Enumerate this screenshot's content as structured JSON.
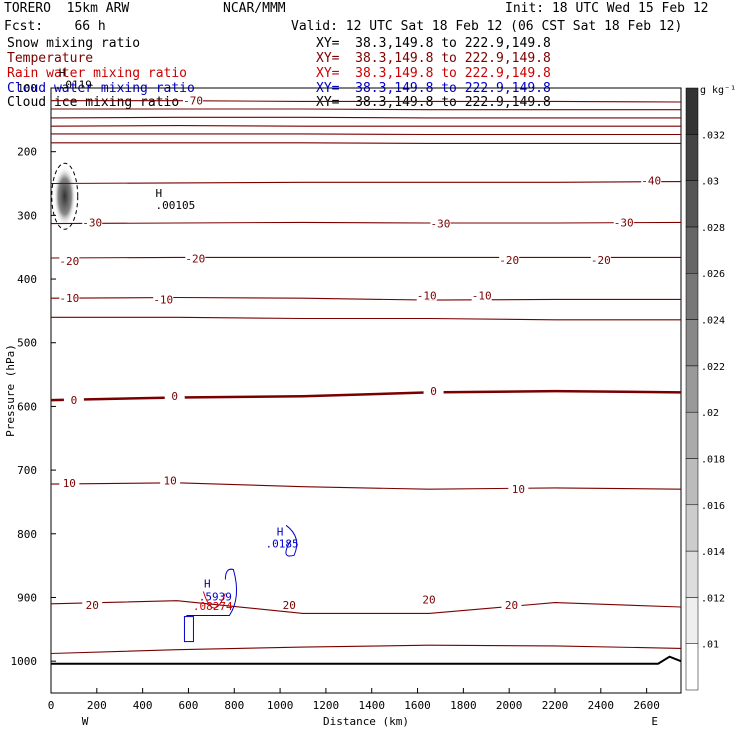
{
  "header": {
    "model": "TORERO  15km ARW",
    "center": "NCAR/MMM",
    "init": "Init: 18 UTC Wed 15 Feb 12",
    "fcst": "Fcst:    66 h",
    "valid": "Valid: 12 UTC Sat 18 Feb 12 (06 CST Sat 18 Feb 12)"
  },
  "legend": [
    {
      "name": "Snow mixing ratio",
      "xy": "XY=  38.3,149.8 to 222.9,149.8",
      "color": "#000000"
    },
    {
      "name": "Temperature",
      "xy": "XY=  38.3,149.8 to 222.9,149.8",
      "color": "#7a0000"
    },
    {
      "name": "Rain water mixing ratio",
      "xy": "XY=  38.3,149.8 to 222.9,149.8",
      "color": "#cc0000"
    },
    {
      "name": "Cloud water mixing ratio",
      "xy": "XY=  38.3,149.8 to 222.9,149.8",
      "color": "#0000cc"
    },
    {
      "name": "Cloud ice mixing ratio",
      "xy": "XY=  38.3,149.8 to 222.9,149.8",
      "color": "#000000"
    }
  ],
  "chart_data": {
    "type": "cross-section",
    "xlabel": "Distance (km)",
    "ylabel": "Pressure (hPa)",
    "xlim": [
      0,
      2750
    ],
    "ylim": [
      1050,
      100
    ],
    "xticks": [
      0,
      200,
      400,
      600,
      800,
      1000,
      1200,
      1400,
      1600,
      1800,
      2000,
      2200,
      2400,
      2600
    ],
    "yticks": [
      100,
      200,
      300,
      400,
      500,
      600,
      700,
      800,
      900,
      1000
    ],
    "x_endpoints": {
      "left": "W",
      "right": "E"
    },
    "colorbar": {
      "units": "g kg⁻¹",
      "levels": [
        ".01",
        ".012",
        ".014",
        ".016",
        ".018",
        ".02",
        ".022",
        ".024",
        ".026",
        ".028",
        ".03",
        ".032"
      ],
      "color_low": "#ffffff",
      "color_high": "#333333"
    },
    "temperature_contours": [
      {
        "label": "-70",
        "p": [
          120,
          120,
          121,
          121,
          121,
          122
        ]
      },
      {
        "p": [
          133,
          133,
          133,
          134,
          134,
          134
        ]
      },
      {
        "p": [
          147,
          146,
          146,
          147,
          147,
          147
        ]
      },
      {
        "p": [
          160,
          159,
          160,
          160,
          160,
          160
        ]
      },
      {
        "p": [
          172,
          172,
          172,
          173,
          173,
          173
        ]
      },
      {
        "p": [
          186,
          186,
          186,
          187,
          187,
          187
        ]
      },
      {
        "label": "-40",
        "p": [
          250,
          249,
          248,
          248,
          248,
          247
        ]
      },
      {
        "label": "-30",
        "p": [
          313,
          312,
          311,
          312,
          312,
          311
        ]
      },
      {
        "label": "-20",
        "p": [
          367,
          366,
          366,
          366,
          366,
          366
        ]
      },
      {
        "label": "-10",
        "p": [
          430,
          429,
          430,
          433,
          432,
          432
        ]
      },
      {
        "p": [
          460,
          460,
          462,
          462,
          464,
          464
        ]
      },
      {
        "label": "0",
        "p": [
          590,
          586,
          584,
          578,
          576,
          578
        ],
        "bold": true
      },
      {
        "label": "10",
        "p": [
          722,
          720,
          726,
          730,
          728,
          730
        ]
      },
      {
        "label": "20",
        "p": [
          910,
          905,
          925,
          925,
          908,
          915
        ]
      },
      {
        "p": [
          988,
          982,
          978,
          975,
          976,
          980
        ]
      }
    ],
    "temperature_labels": [
      {
        "text": "-70",
        "x": 620,
        "p": 120
      },
      {
        "text": "-40",
        "x": 2620,
        "p": 245
      },
      {
        "text": "-30",
        "x": 180,
        "p": 311
      },
      {
        "text": "-30",
        "x": 1700,
        "p": 313
      },
      {
        "text": "-30",
        "x": 2500,
        "p": 311
      },
      {
        "text": "-20",
        "x": 80,
        "p": 372
      },
      {
        "text": "-20",
        "x": 630,
        "p": 368
      },
      {
        "text": "-20",
        "x": 2000,
        "p": 370
      },
      {
        "text": "-20",
        "x": 2400,
        "p": 370
      },
      {
        "text": "-10",
        "x": 80,
        "p": 430
      },
      {
        "text": "-10",
        "x": 490,
        "p": 432
      },
      {
        "text": "-10",
        "x": 1640,
        "p": 426
      },
      {
        "text": "-10",
        "x": 1880,
        "p": 426
      },
      {
        "text": "0",
        "x": 100,
        "p": 590
      },
      {
        "text": "0",
        "x": 540,
        "p": 584
      },
      {
        "text": "0",
        "x": 1670,
        "p": 576
      },
      {
        "text": "10",
        "x": 80,
        "p": 720
      },
      {
        "text": "10",
        "x": 520,
        "p": 716
      },
      {
        "text": "10",
        "x": 2040,
        "p": 730
      },
      {
        "text": "20",
        "x": 180,
        "p": 912
      },
      {
        "text": "20",
        "x": 1040,
        "p": 912
      },
      {
        "text": "20",
        "x": 1650,
        "p": 903
      },
      {
        "text": "20",
        "x": 2010,
        "p": 912
      }
    ],
    "snow_max": {
      "x": 60,
      "p": 270,
      "value": ".0119"
    },
    "cloud_ice_max": {
      "x": 500,
      "p": 287,
      "value": ".00105"
    },
    "cloud_water_max_1": {
      "x": 1000,
      "p": 793,
      "value": ".0185"
    },
    "cloud_water_max_2": {
      "x": 700,
      "p": 900,
      "value": ".5939"
    },
    "rain_max": {
      "x": 680,
      "p": 910,
      "value": ".08274"
    },
    "high_marker": "H"
  }
}
